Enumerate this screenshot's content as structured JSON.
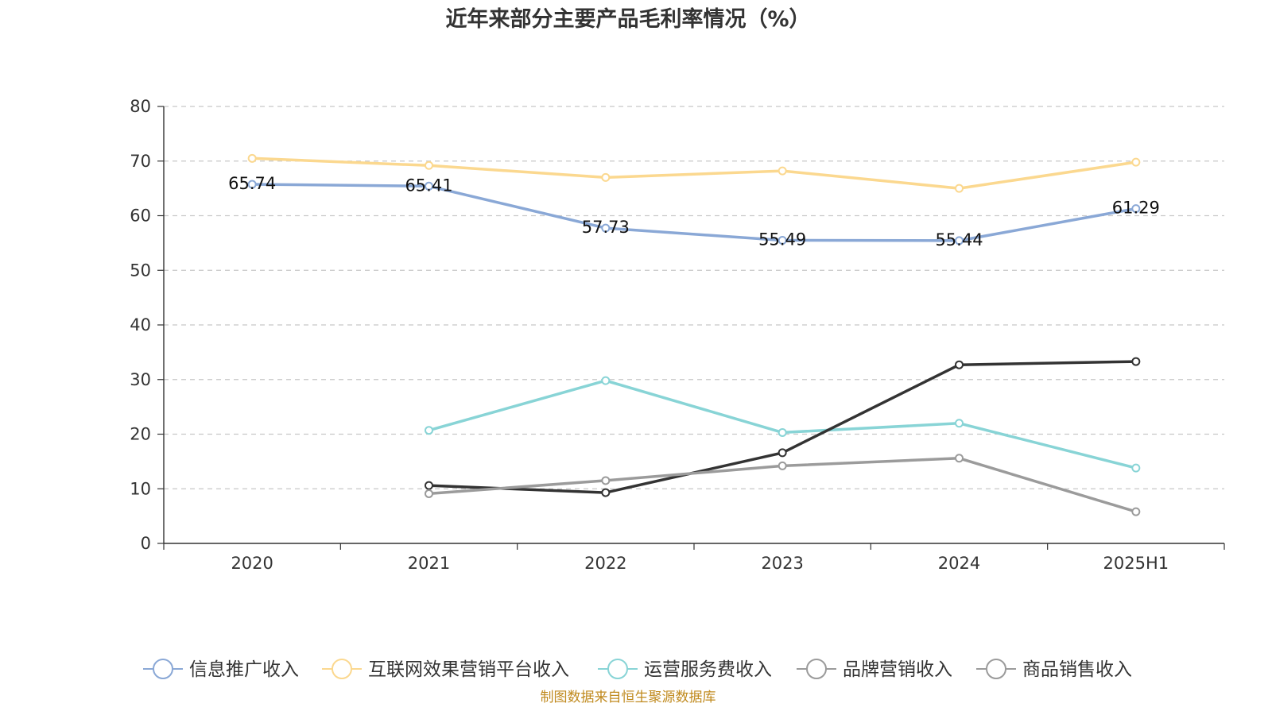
{
  "chart_data": {
    "type": "line",
    "title": "近年来部分主要产品毛利率情况（%）",
    "xlabel": "",
    "ylabel": "",
    "categories": [
      "2020",
      "2021",
      "2022",
      "2023",
      "2024",
      "2025H1"
    ],
    "ylim": [
      0,
      80
    ],
    "yticks": [
      0,
      10,
      20,
      30,
      40,
      50,
      60,
      70,
      80
    ],
    "grid": true,
    "legend_position": "bottom",
    "series": [
      {
        "name": "信息推广收入",
        "color": "#8aa8d6",
        "values": [
          65.74,
          65.41,
          57.73,
          55.49,
          55.44,
          61.29
        ],
        "show_labels": true
      },
      {
        "name": "互联网效果营销平台收入",
        "color": "#fbd88f",
        "values": [
          70.5,
          69.2,
          67.0,
          68.2,
          65.0,
          69.8
        ],
        "show_labels": false
      },
      {
        "name": "运营服务费收入",
        "color": "#88d4d6",
        "values": [
          null,
          20.7,
          29.8,
          20.3,
          22.0,
          13.8
        ],
        "show_labels": false
      },
      {
        "name": "品牌营销收入",
        "color": "#333333",
        "values": [
          null,
          10.6,
          9.3,
          16.6,
          32.7,
          33.3
        ],
        "show_labels": false
      },
      {
        "name": "商品销售收入",
        "color": "#9b9b9b",
        "values": [
          null,
          9.1,
          11.5,
          14.2,
          15.6,
          5.8
        ],
        "show_labels": false
      }
    ],
    "legend_colors": [
      "#8aa8d6",
      "#fbd88f",
      "#88d4d6",
      "#9b9b9b",
      "#9b9b9b"
    ]
  },
  "source": "制图数据来自恒生聚源数据库"
}
